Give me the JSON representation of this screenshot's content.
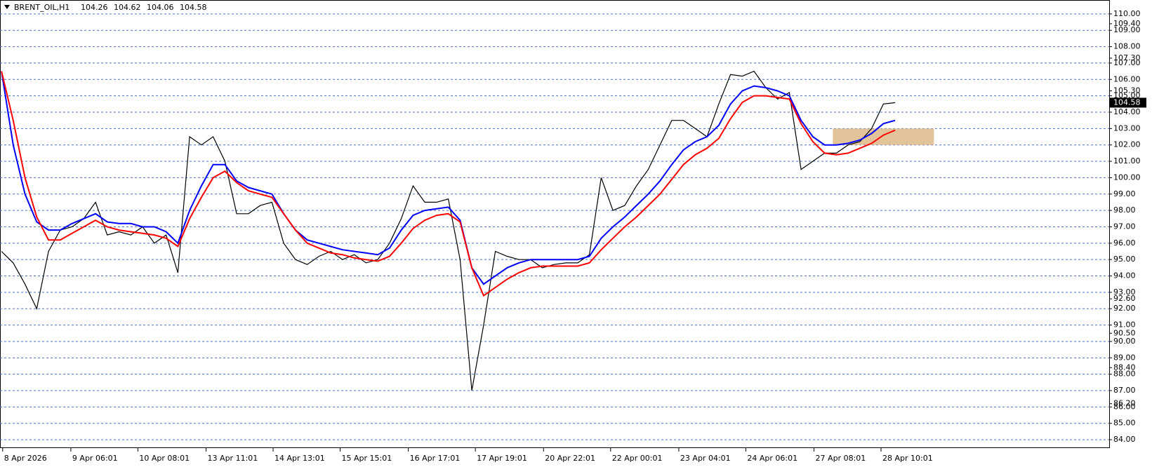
{
  "chart_data": {
    "type": "line",
    "symbol": "BRENT_OIL,H1",
    "ohlc": [
      104.26,
      104.62,
      104.06,
      104.58
    ],
    "x": [
      0,
      1,
      2,
      3,
      4,
      5,
      6,
      7,
      8,
      9,
      10,
      11,
      12,
      13,
      14,
      15,
      16,
      17,
      18,
      19,
      20,
      21,
      22,
      23,
      24,
      25,
      26,
      27,
      28,
      29,
      30,
      31,
      32,
      33,
      34,
      35,
      36,
      37,
      38,
      39,
      40,
      41,
      42,
      43,
      44,
      45,
      46,
      47,
      48,
      49,
      50,
      51,
      52,
      53,
      54,
      55,
      56,
      57,
      58,
      59,
      60,
      61,
      62,
      63,
      64,
      65,
      66,
      67,
      68,
      69,
      70,
      71,
      72,
      73,
      74,
      75,
      76
    ],
    "series": [
      {
        "color": "#000000",
        "values": [
          95.5,
          94.8,
          93.5,
          92,
          95.5,
          96.8,
          97,
          97.5,
          98.5,
          96.5,
          96.7,
          96.5,
          97,
          96,
          96.5,
          94.2,
          102.5,
          102,
          102.5,
          101,
          97.8,
          97.8,
          98.3,
          98.5,
          96,
          95,
          94.7,
          95.2,
          95.5,
          95,
          95.3,
          94.8,
          95,
          96,
          97.5,
          99.5,
          98.5,
          98.5,
          98.7,
          95,
          87,
          91,
          95.5,
          95.2,
          95,
          95,
          94.5,
          94.7,
          94.8,
          94.8,
          95.3,
          100,
          98,
          98.3,
          99.5,
          100.5,
          102,
          103.5,
          103.5,
          103,
          102.5,
          104.5,
          106.3,
          106.2,
          106.5,
          105.5,
          104.8,
          105.2,
          100.5,
          101,
          101.5,
          101.5,
          102,
          102.2,
          103,
          104.5,
          104.58
        ]
      },
      {
        "color": "#0000ff",
        "values": [
          106.5,
          102,
          99,
          97.3,
          96.8,
          96.8,
          97.2,
          97.5,
          97.8,
          97.3,
          97.2,
          97.2,
          97,
          97,
          96.7,
          96,
          98,
          99.5,
          100.8,
          100.8,
          99.8,
          99.4,
          99.2,
          99,
          97.8,
          96.8,
          96.2,
          96,
          95.8,
          95.6,
          95.5,
          95.4,
          95.3,
          95.7,
          96.8,
          97.7,
          98,
          98.1,
          98.2,
          97.4,
          94.5,
          93.5,
          94,
          94.5,
          94.8,
          95,
          95,
          95,
          95,
          95,
          95.2,
          96.3,
          97,
          97.6,
          98.3,
          99,
          99.8,
          100.8,
          101.7,
          102.2,
          102.5,
          103.2,
          104.5,
          105.3,
          105.6,
          105.5,
          105.3,
          105,
          103.5,
          102.5,
          102,
          102,
          102.1,
          102.3,
          102.7,
          103.3,
          103.5
        ]
      },
      {
        "color": "#ff0000",
        "values": [
          106.5,
          103.5,
          100,
          97.6,
          96.2,
          96.2,
          96.6,
          97,
          97.4,
          97,
          96.8,
          96.7,
          96.6,
          96.5,
          96.3,
          95.8,
          97.5,
          98.8,
          100,
          100.4,
          99.7,
          99.2,
          99,
          98.8,
          97.8,
          96.8,
          96,
          95.7,
          95.4,
          95.3,
          95.1,
          95,
          94.9,
          95.2,
          96,
          96.9,
          97.4,
          97.7,
          97.8,
          97.3,
          94.5,
          92.8,
          93.3,
          93.8,
          94.2,
          94.5,
          94.6,
          94.6,
          94.6,
          94.6,
          94.8,
          95.6,
          96.3,
          97,
          97.6,
          98.3,
          99,
          99.9,
          100.8,
          101.4,
          101.8,
          102.4,
          103.6,
          104.6,
          105,
          105,
          104.9,
          104.8,
          103.3,
          102.2,
          101.5,
          101.4,
          101.5,
          101.8,
          102.1,
          102.6,
          102.9
        ]
      }
    ],
    "zone": {
      "x": [
        70.7,
        79.3
      ],
      "y": [
        102,
        103
      ],
      "color": "#deb887"
    },
    "xlim": [
      -0.125,
      94.2
    ],
    "ylim": [
      83.49,
      110.85
    ],
    "xticks": [
      {
        "value": 0.1,
        "label": "8 Apr 2026"
      },
      {
        "value": 5.9,
        "label": "9 Apr 06:01"
      },
      {
        "value": 11.6,
        "label": "10 Apr 08:01"
      },
      {
        "value": 17.4,
        "label": "13 Apr 11:01"
      },
      {
        "value": 23.1,
        "label": "14 Apr 13:01"
      },
      {
        "value": 28.8,
        "label": "15 Apr 15:01"
      },
      {
        "value": 34.6,
        "label": "16 Apr 17:01"
      },
      {
        "value": 40.3,
        "label": "17 Apr 19:01"
      },
      {
        "value": 46.1,
        "label": "20 Apr 22:01"
      },
      {
        "value": 51.8,
        "label": "22 Apr 00:01"
      },
      {
        "value": 57.6,
        "label": "23 Apr 04:01"
      },
      {
        "value": 63.3,
        "label": "24 Apr 06:01"
      },
      {
        "value": 69.1,
        "label": "27 Apr 08:01"
      },
      {
        "value": 74.8,
        "label": "28 Apr 10:01"
      }
    ],
    "yticks": [
      {
        "value": 84,
        "label": "84.00"
      },
      {
        "value": 85,
        "label": "85.00"
      },
      {
        "value": 86,
        "label": "86.00"
      },
      {
        "value": 87,
        "label": "87.00"
      },
      {
        "value": 88,
        "label": "88.00"
      },
      {
        "value": 89,
        "label": "89.00"
      },
      {
        "value": 90,
        "label": "90.00"
      },
      {
        "value": 91,
        "label": "91.00"
      },
      {
        "value": 92,
        "label": "92.00"
      },
      {
        "value": 93,
        "label": "93.00"
      },
      {
        "value": 94,
        "label": "94.00"
      },
      {
        "value": 95,
        "label": "95.00"
      },
      {
        "value": 96,
        "label": "96.00"
      },
      {
        "value": 97,
        "label": "97.00"
      },
      {
        "value": 98,
        "label": "98.00"
      },
      {
        "value": 99,
        "label": "99.00"
      },
      {
        "value": 100,
        "label": "100.00"
      },
      {
        "value": 101,
        "label": "101.00"
      },
      {
        "value": 102,
        "label": "102.00"
      },
      {
        "value": 103,
        "label": "103.00"
      },
      {
        "value": 104,
        "label": "104.00"
      },
      {
        "value": 105,
        "label": "105.00"
      },
      {
        "value": 106,
        "label": "106.00"
      },
      {
        "value": 107,
        "label": "107.00"
      },
      {
        "value": 108,
        "label": "108.00"
      },
      {
        "value": 109,
        "label": "109.00"
      },
      {
        "value": 110,
        "label": "110.00"
      }
    ],
    "yticks_extra": [
      {
        "value": 86.2,
        "label": "86.20"
      },
      {
        "value": 88.4,
        "label": "88.40"
      },
      {
        "value": 90.5,
        "label": "90.50"
      },
      {
        "value": 92.6,
        "label": "92.60"
      },
      {
        "value": 105.3,
        "label": "105.30"
      },
      {
        "value": 107.3,
        "label": "107.30"
      },
      {
        "value": 109.4,
        "label": "109.40"
      }
    ],
    "current_price": {
      "value": 104.58,
      "label": "104.58"
    },
    "grid": true,
    "grid_color": "#4a6fc0"
  }
}
